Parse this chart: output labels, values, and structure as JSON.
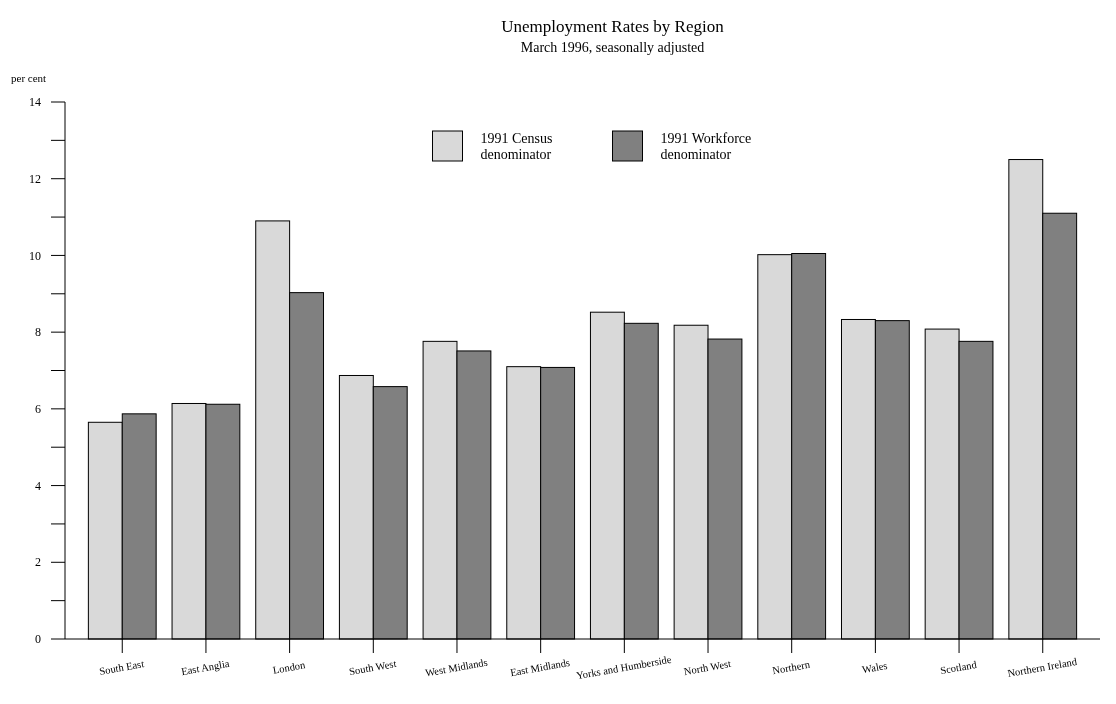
{
  "chart_data": {
    "type": "bar",
    "title": "Unemployment Rates by Region",
    "subtitle": "March 1996, seasonally adjusted",
    "ylabel": "per cent",
    "categories": [
      "South East",
      "East Anglia",
      "London",
      "South West",
      "West Midlands",
      "East Midlands",
      "Yorks and Humberside",
      "North West",
      "Northern",
      "Wales",
      "Scotland",
      "Northern Ireland"
    ],
    "series": [
      {
        "name": "1991 Census\ndenominator",
        "color": "#d9d9d9",
        "values": [
          5.65,
          6.14,
          10.9,
          6.87,
          7.76,
          7.1,
          8.52,
          8.18,
          10.02,
          8.33,
          8.08,
          12.5
        ]
      },
      {
        "name": "1991 Workforce\ndenominator",
        "color": "#808080",
        "values": [
          5.87,
          6.12,
          9.03,
          6.58,
          7.51,
          7.08,
          8.23,
          7.82,
          10.05,
          8.3,
          7.76,
          11.1
        ]
      }
    ],
    "ylim": [
      0,
      14
    ],
    "yticks": [
      0,
      {
        "value": 1,
        "label": null
      },
      2,
      {
        "value": 3,
        "label": null
      },
      4,
      {
        "value": 5,
        "label": null
      },
      6,
      {
        "value": 7,
        "label": null
      },
      8,
      {
        "value": 9,
        "label": null
      },
      10,
      {
        "value": 11,
        "label": null
      },
      12,
      {
        "value": 13,
        "label": null
      },
      14
    ],
    "grid": false,
    "legend": "top"
  }
}
